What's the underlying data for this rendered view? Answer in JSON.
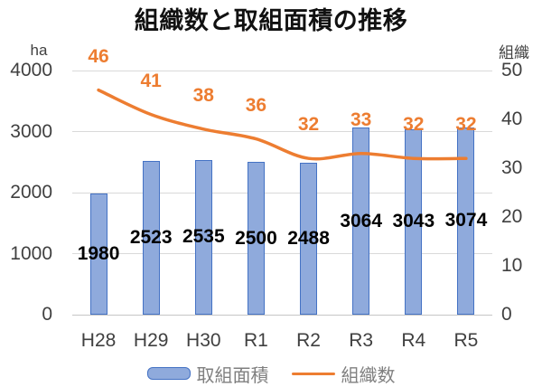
{
  "title": "組織数と取組面積の推移",
  "left_axis": {
    "unit": "ha",
    "ticks": [
      4000,
      3000,
      2000,
      1000,
      0
    ]
  },
  "right_axis": {
    "unit": "組織",
    "ticks": [
      50,
      40,
      30,
      20,
      10,
      0
    ]
  },
  "chart_data": {
    "type": "combo-bar-line",
    "title": "組織数と取組面積の推移",
    "categories": [
      "H28",
      "H29",
      "H30",
      "R1",
      "R2",
      "R3",
      "R4",
      "R5"
    ],
    "series": [
      {
        "name": "取組面積",
        "type": "bar",
        "axis": "left",
        "unit": "ha",
        "values": [
          1980,
          2523,
          2535,
          2500,
          2488,
          3064,
          3043,
          3074
        ]
      },
      {
        "name": "組織数",
        "type": "line",
        "axis": "right",
        "unit": "組織",
        "values": [
          46,
          41,
          38,
          36,
          32,
          33,
          32,
          32
        ]
      }
    ],
    "left_ylim": [
      0,
      4000
    ],
    "right_ylim": [
      0,
      50
    ],
    "grid": true,
    "legend_position": "bottom",
    "data_labels": true
  },
  "legend": {
    "bar_label": "取組面積",
    "line_label": "組織数"
  },
  "colors": {
    "bar_fill": "#8FAADC",
    "bar_border": "#4472C4",
    "line": "#ED7D31",
    "line_label": "#ED7D31",
    "bar_label": "#000000",
    "axis_text": "#404040",
    "grid": "#D9D9D9",
    "baseline": "#C6C6C6",
    "legend_text": "#7F7F7F",
    "title": "#111111"
  }
}
